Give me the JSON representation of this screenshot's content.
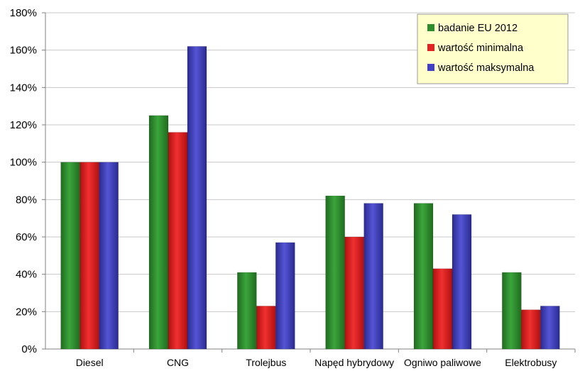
{
  "chart_data": {
    "type": "bar",
    "categories": [
      "Diesel",
      "CNG",
      "Trolejbus",
      "Napęd hybrydowy",
      "Ogniwo paliwowe",
      "Elektrobusy"
    ],
    "series": [
      {
        "name": "badanie EU 2012",
        "color": "#2e8b2e",
        "values": [
          100,
          125,
          41,
          82,
          78,
          41
        ]
      },
      {
        "name": "wartość minimalna",
        "color": "#e02424",
        "values": [
          100,
          116,
          23,
          60,
          43,
          21
        ]
      },
      {
        "name": "wartość maksymalna",
        "color": "#4040c0",
        "values": [
          100,
          162,
          57,
          78,
          72,
          23
        ]
      }
    ],
    "ylim": [
      0,
      180
    ],
    "yticks": [
      "0%",
      "20%",
      "40%",
      "60%",
      "80%",
      "100%",
      "120%",
      "140%",
      "160%",
      "180%"
    ],
    "grid": true,
    "legend_position": "top-right",
    "legend_background": "#ffffcc"
  }
}
